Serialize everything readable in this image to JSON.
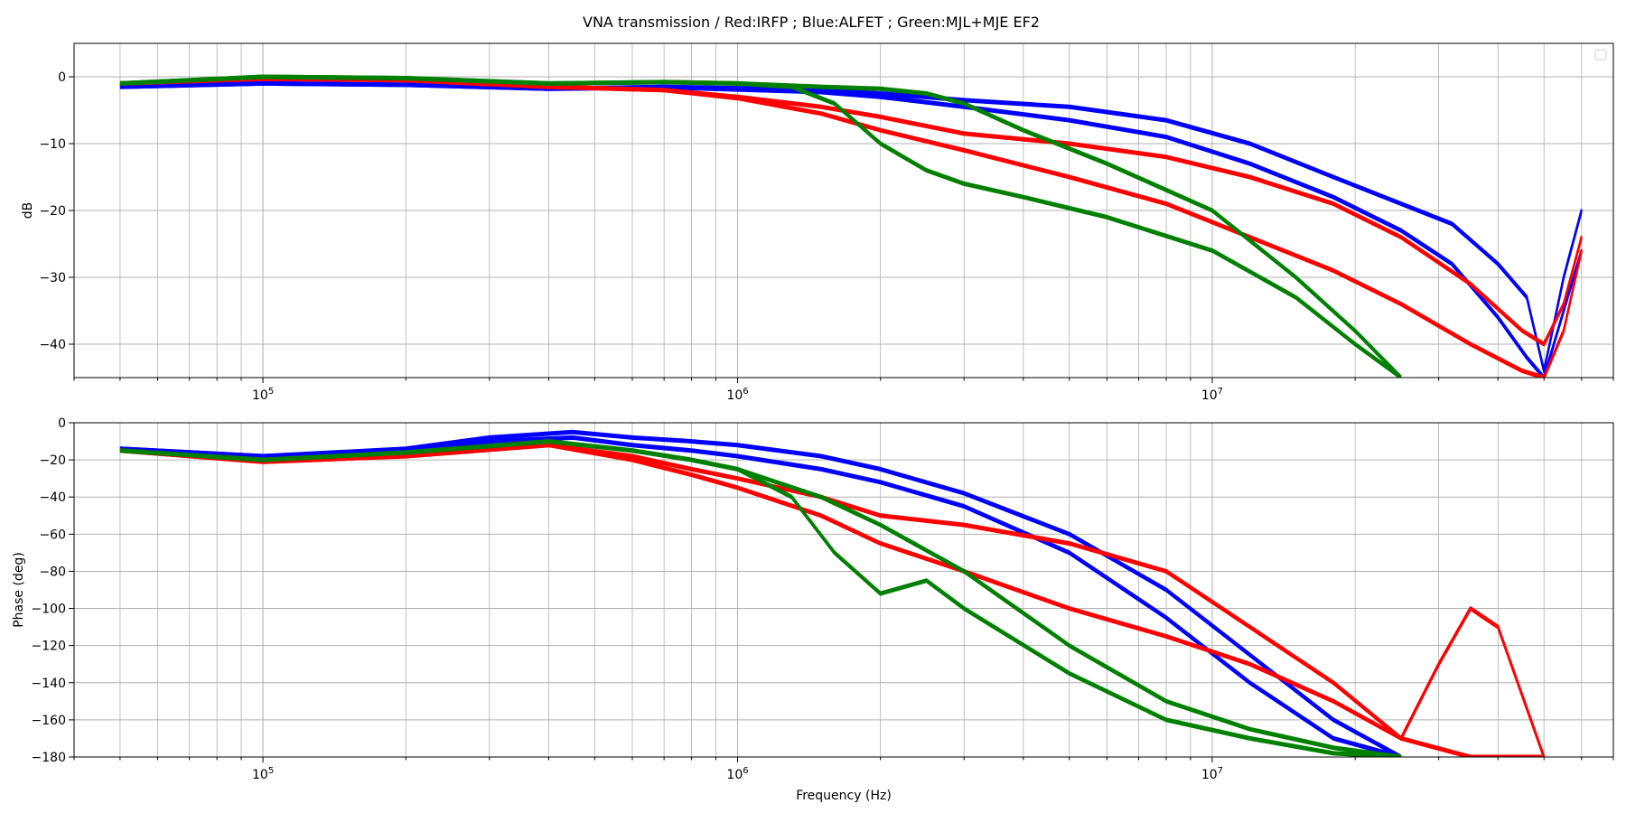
{
  "title": "VNA transmission / Red:IRFP ; Blue:ALFET ; Green:MJL+MJE EF2",
  "chart_data": [
    {
      "type": "line",
      "panel": "magnitude",
      "xlabel": "",
      "ylabel": "dB",
      "xscale": "log",
      "xlim": [
        40000,
        70000000
      ],
      "ylim": [
        -45,
        5
      ],
      "yticks": [
        0,
        -10,
        -20,
        -30,
        -40
      ],
      "xticks": [
        100000,
        1000000,
        10000000
      ],
      "xtick_labels": [
        {
          "base": "10",
          "exp": "5"
        },
        {
          "base": "10",
          "exp": "6"
        },
        {
          "base": "10",
          "exp": "7"
        }
      ],
      "grid": true,
      "legend": "empty box, top-right",
      "series": [
        {
          "color": "#0000ff",
          "x": [
            50000,
            100000,
            200000,
            400000,
            700000,
            1000000,
            1500000,
            2000000,
            3000000,
            5000000,
            8000000,
            12000000,
            18000000,
            25000000,
            32000000,
            40000000,
            46000000,
            50000000,
            55000000,
            60000000
          ],
          "y": [
            -1.5,
            -1.0,
            -1.2,
            -1.8,
            -1.5,
            -1.7,
            -2.0,
            -2.5,
            -3.5,
            -4.5,
            -6.5,
            -10,
            -15,
            -19,
            -22,
            -28,
            -33,
            -44,
            -30,
            -20
          ]
        },
        {
          "color": "#0000ff",
          "x": [
            50000,
            100000,
            200000,
            400000,
            700000,
            1000000,
            1500000,
            2000000,
            3000000,
            5000000,
            8000000,
            12000000,
            18000000,
            25000000,
            32000000,
            40000000,
            46000000,
            50000000,
            55000000,
            60000000
          ],
          "y": [
            -1.5,
            -1.0,
            -1.2,
            -1.8,
            -1.6,
            -1.9,
            -2.3,
            -3.0,
            -4.5,
            -6.5,
            -9,
            -13,
            -18,
            -23,
            -28,
            -36,
            -42,
            -45,
            -35,
            -26
          ]
        },
        {
          "color": "#ff0000",
          "x": [
            50000,
            100000,
            200000,
            400000,
            700000,
            1000000,
            1500000,
            2000000,
            3000000,
            5000000,
            8000000,
            12000000,
            18000000,
            25000000,
            35000000,
            45000000,
            50000000,
            55000000,
            60000000
          ],
          "y": [
            -1.0,
            -0.3,
            -0.5,
            -1.5,
            -2.0,
            -3.0,
            -4.5,
            -6.0,
            -8.5,
            -10,
            -12,
            -15,
            -19,
            -24,
            -31,
            -38,
            -40,
            -34,
            -24
          ]
        },
        {
          "color": "#ff0000",
          "x": [
            50000,
            100000,
            200000,
            400000,
            700000,
            1000000,
            1500000,
            2000000,
            3000000,
            5000000,
            8000000,
            12000000,
            18000000,
            25000000,
            35000000,
            45000000,
            50000000,
            55000000,
            60000000
          ],
          "y": [
            -1.0,
            -0.3,
            -0.5,
            -1.5,
            -2.0,
            -3.2,
            -5.5,
            -8.0,
            -11,
            -15,
            -19,
            -24,
            -29,
            -34,
            -40,
            -44,
            -45,
            -38,
            -26
          ]
        },
        {
          "color": "#008000",
          "x": [
            50000,
            100000,
            200000,
            400000,
            700000,
            1000000,
            1500000,
            2000000,
            2500000,
            3000000,
            4000000,
            6000000,
            10000000,
            15000000,
            20000000,
            25000000
          ],
          "y": [
            -1.0,
            0.0,
            -0.2,
            -1.0,
            -0.8,
            -1.0,
            -1.5,
            -1.8,
            -2.5,
            -4,
            -8,
            -13,
            -20,
            -30,
            -38,
            -45
          ]
        },
        {
          "color": "#008000",
          "x": [
            50000,
            100000,
            200000,
            400000,
            700000,
            1000000,
            1300000,
            1600000,
            2000000,
            2500000,
            3000000,
            4000000,
            6000000,
            10000000,
            15000000,
            20000000,
            25000000
          ],
          "y": [
            -1.0,
            0.0,
            -0.2,
            -1.0,
            -0.8,
            -1.0,
            -1.5,
            -4,
            -10,
            -14,
            -16,
            -18,
            -21,
            -26,
            -33,
            -40,
            -45
          ]
        }
      ]
    },
    {
      "type": "line",
      "panel": "phase",
      "xlabel": "Frequency (Hz)",
      "ylabel": "Phase (deg)",
      "xscale": "log",
      "xlim": [
        40000,
        70000000
      ],
      "ylim": [
        -180,
        0
      ],
      "yticks": [
        0,
        -20,
        -40,
        -60,
        -80,
        -100,
        -120,
        -140,
        -160,
        -180
      ],
      "xticks": [
        100000,
        1000000,
        10000000
      ],
      "xtick_labels": [
        {
          "base": "10",
          "exp": "5"
        },
        {
          "base": "10",
          "exp": "6"
        },
        {
          "base": "10",
          "exp": "7"
        }
      ],
      "grid": true,
      "series": [
        {
          "color": "#0000ff",
          "x": [
            50000,
            100000,
            200000,
            300000,
            450000,
            600000,
            800000,
            1000000,
            1500000,
            2000000,
            3000000,
            5000000,
            8000000,
            12000000,
            18000000,
            25000000
          ],
          "y": [
            -14,
            -18,
            -14,
            -8,
            -5,
            -8,
            -10,
            -12,
            -18,
            -25,
            -38,
            -60,
            -90,
            -125,
            -160,
            -180
          ]
        },
        {
          "color": "#0000ff",
          "x": [
            50000,
            100000,
            200000,
            300000,
            450000,
            600000,
            800000,
            1000000,
            1500000,
            2000000,
            3000000,
            5000000,
            8000000,
            12000000,
            18000000,
            25000000
          ],
          "y": [
            -14,
            -18,
            -15,
            -10,
            -8,
            -12,
            -15,
            -18,
            -25,
            -32,
            -45,
            -70,
            -105,
            -140,
            -170,
            -180
          ]
        },
        {
          "color": "#ff0000",
          "x": [
            50000,
            100000,
            200000,
            400000,
            600000,
            800000,
            1000000,
            1500000,
            2000000,
            3000000,
            5000000,
            8000000,
            12000000,
            18000000,
            25000000,
            30000000,
            35000000,
            40000000,
            50000000
          ],
          "y": [
            -15,
            -21,
            -18,
            -12,
            -18,
            -25,
            -30,
            -40,
            -50,
            -55,
            -65,
            -80,
            -110,
            -140,
            -170,
            -130,
            -100,
            -110,
            -180
          ]
        },
        {
          "color": "#ff0000",
          "x": [
            50000,
            100000,
            200000,
            400000,
            600000,
            800000,
            1000000,
            1500000,
            2000000,
            3000000,
            5000000,
            8000000,
            12000000,
            18000000,
            25000000,
            35000000,
            50000000
          ],
          "y": [
            -15,
            -21,
            -18,
            -12,
            -20,
            -28,
            -35,
            -50,
            -65,
            -80,
            -100,
            -115,
            -130,
            -150,
            -170,
            -180,
            -180
          ]
        },
        {
          "color": "#008000",
          "x": [
            50000,
            100000,
            200000,
            400000,
            600000,
            800000,
            1000000,
            1500000,
            2000000,
            3000000,
            5000000,
            8000000,
            12000000,
            18000000,
            25000000
          ],
          "y": [
            -15,
            -20,
            -16,
            -10,
            -15,
            -20,
            -25,
            -40,
            -55,
            -80,
            -120,
            -150,
            -165,
            -175,
            -180
          ]
        },
        {
          "color": "#008000",
          "x": [
            50000,
            100000,
            200000,
            400000,
            600000,
            800000,
            1000000,
            1300000,
            1600000,
            2000000,
            2500000,
            3000000,
            5000000,
            8000000,
            12000000,
            18000000,
            25000000
          ],
          "y": [
            -15,
            -20,
            -16,
            -10,
            -15,
            -20,
            -25,
            -40,
            -70,
            -92,
            -85,
            -100,
            -135,
            -160,
            -170,
            -178,
            -180
          ]
        }
      ]
    }
  ]
}
